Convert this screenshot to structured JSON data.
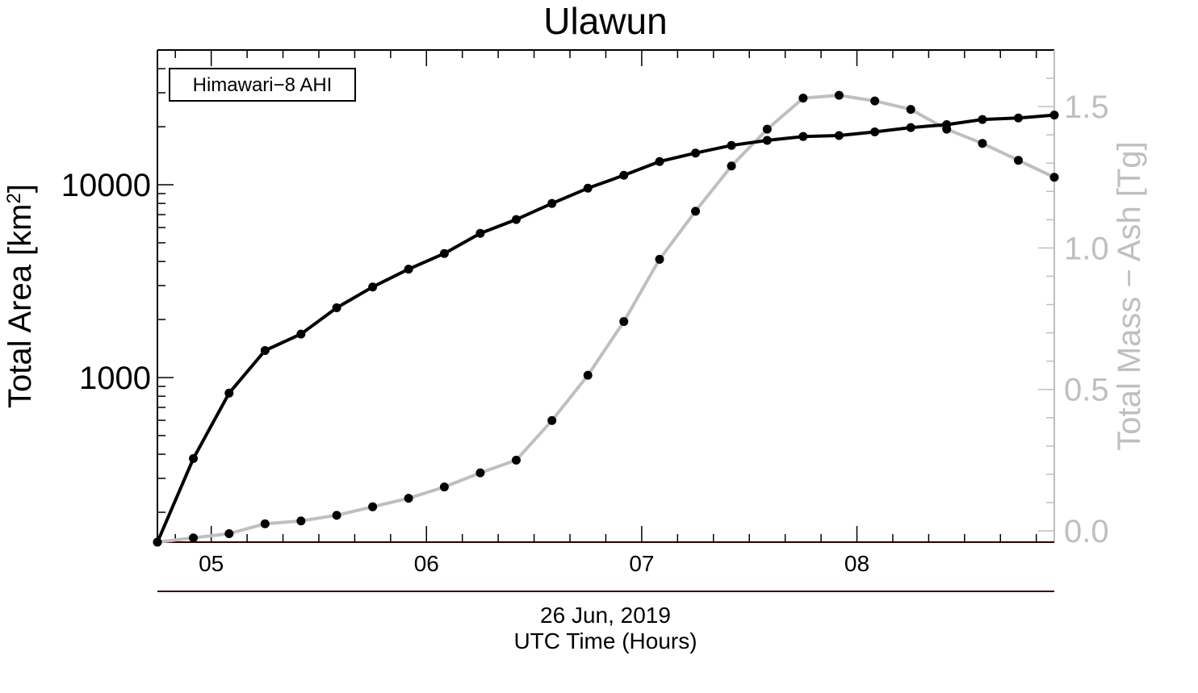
{
  "chart_data": {
    "type": "line",
    "title": "Ulawun",
    "legend_box": "Himawari−8 AHI",
    "date_label": "26 Jun, 2019",
    "xlabel": "UTC Time (Hours)",
    "ylabel_left": "Total Area [km",
    "ylabel_left_sup": "2",
    "ylabel_left_end": "]",
    "ylabel_right": "Total Mass − Ash [Tg]",
    "x_units": "hours UTC",
    "xlim": [
      4.75,
      8.917
    ],
    "x_ticks": [
      {
        "value": 5,
        "label": "05"
      },
      {
        "value": 6,
        "label": "06"
      },
      {
        "value": 7,
        "label": "07"
      },
      {
        "value": 8,
        "label": "08"
      }
    ],
    "y_left_scale": "log",
    "y_left_lim": [
      140,
      50000
    ],
    "y_left_ticks": [
      {
        "value": 1000,
        "label": "1000"
      },
      {
        "value": 10000,
        "label": "10000"
      }
    ],
    "y_right_lim": [
      -0.04,
      1.7
    ],
    "y_right_ticks": [
      {
        "value": 0.0,
        "label": "0.0"
      },
      {
        "value": 0.5,
        "label": "0.5"
      },
      {
        "value": 1.0,
        "label": "1.0"
      },
      {
        "value": 1.5,
        "label": "1.5"
      }
    ],
    "colors": {
      "area": "#000000",
      "mass": "#bfbfbf",
      "date_rule": "#330000"
    },
    "x": [
      4.75,
      4.917,
      5.083,
      5.25,
      5.417,
      5.583,
      5.75,
      5.917,
      6.083,
      6.25,
      6.417,
      6.583,
      6.75,
      6.917,
      7.083,
      7.25,
      7.417,
      7.583,
      7.75,
      7.917,
      8.083,
      8.25,
      8.417,
      8.583,
      8.75,
      8.917
    ],
    "series": [
      {
        "axis": "left",
        "values": [
          140,
          380,
          830,
          1380,
          1680,
          2300,
          2950,
          3650,
          4400,
          5600,
          6600,
          8000,
          9600,
          11200,
          13200,
          14600,
          16000,
          17000,
          17800,
          18000,
          18800,
          19800,
          20500,
          21800,
          22200,
          23000
        ]
      },
      {
        "axis": "right",
        "values": [
          -0.04,
          -0.025,
          -0.01,
          0.025,
          0.035,
          0.055,
          0.085,
          0.115,
          0.155,
          0.205,
          0.25,
          0.39,
          0.55,
          0.74,
          0.96,
          1.13,
          1.29,
          1.42,
          1.53,
          1.54,
          1.52,
          1.49,
          1.42,
          1.37,
          1.31,
          1.25
        ]
      }
    ]
  }
}
